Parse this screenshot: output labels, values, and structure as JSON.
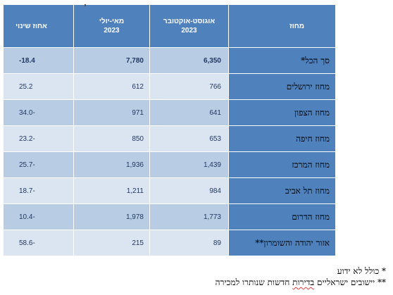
{
  "table": {
    "headers": {
      "district": "מחוז",
      "aug_oct": [
        "אוגוסט-אוקטובר",
        "2023"
      ],
      "may_jul": [
        "מאי-יולי",
        "2023"
      ],
      "change": "אחוז שינוי"
    },
    "rows": [
      {
        "district": "סך הכל*",
        "aug_oct": "6,350",
        "may_jul": "7,780",
        "change": "-18.4",
        "total": true
      },
      {
        "district": "מחוז ירושלים",
        "aug_oct": "766",
        "may_jul": "612",
        "change": "25.2"
      },
      {
        "district": "מחוז הצפון",
        "aug_oct": "641",
        "may_jul": "971",
        "change": "34.0-"
      },
      {
        "district": "מחוז חיפה",
        "aug_oct": "653",
        "may_jul": "850",
        "change": "23.2-"
      },
      {
        "district": "מחוז המרכז",
        "aug_oct": "1,439",
        "may_jul": "1,936",
        "change": "25.7-"
      },
      {
        "district": "מחוז תל אביב",
        "aug_oct": "984",
        "may_jul": "1,211",
        "change": "18.7-"
      },
      {
        "district": "מחוז הדרום",
        "aug_oct": "1,773",
        "may_jul": "1,978",
        "change": "10.4-"
      },
      {
        "district": "אזור יהודה והשומרון**",
        "aug_oct": "89",
        "may_jul": "215",
        "change": "58.6-"
      }
    ]
  },
  "footnotes": {
    "note1": "* כולל לא ידוע",
    "note2_prefix": "** יישובים ישראליים ",
    "note2_marked": "בדירות",
    "note2_suffix": " חדשות שנותרו למכירה"
  }
}
